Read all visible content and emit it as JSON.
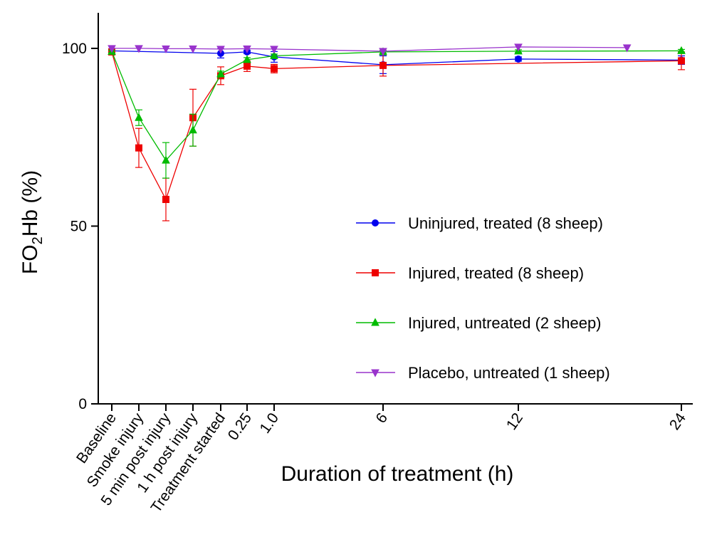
{
  "chart_data": {
    "type": "line",
    "title": "",
    "xlabel": "Duration of treatment (h)",
    "ylabel": "FO",
    "ylabel_sub": "2",
    "ylabel_rest": "Hb (%)",
    "ylim": [
      0,
      110
    ],
    "yticks": [
      "0",
      "50",
      "100"
    ],
    "ytick_values": [
      0,
      50,
      100
    ],
    "categories": [
      "Baseline",
      "Smoke injury",
      "5 min post injury",
      "1 h post injury",
      "Treatment started",
      "0.25",
      "1.0",
      "6",
      "12",
      "24"
    ],
    "x_time_positions": [
      -4,
      -3,
      -2,
      -1,
      0,
      0.25,
      1.0,
      6,
      12,
      24
    ],
    "legend_position": "right-center",
    "grid": false,
    "series": [
      {
        "name": "Uninjured, treated (8 sheep)",
        "color": "#0000ee",
        "marker": "circle",
        "points": [
          {
            "x": -4,
            "y": 99.3,
            "err": 0.6
          },
          {
            "x": 0,
            "y": 98.6,
            "err": 1.3
          },
          {
            "x": 0.25,
            "y": 99.0,
            "err": 0.5
          },
          {
            "x": 1.0,
            "y": 97.6,
            "err": 1.5
          },
          {
            "x": 6,
            "y": 95.4,
            "err": 2.5
          },
          {
            "x": 12,
            "y": 97.0,
            "err": 0.6
          },
          {
            "x": 24,
            "y": 96.7,
            "err": 1.2
          }
        ]
      },
      {
        "name": "Injured, treated (8 sheep)",
        "color": "#ee0000",
        "marker": "square",
        "points": [
          {
            "x": -4,
            "y": 99.0,
            "err": 0.5
          },
          {
            "x": -3,
            "y": 72.0,
            "err": 5.5
          },
          {
            "x": -2,
            "y": 57.5,
            "err": 6.0
          },
          {
            "x": -1,
            "y": 80.5,
            "err": 8.0
          },
          {
            "x": 0,
            "y": 92.3,
            "err": 2.5
          },
          {
            "x": 0.25,
            "y": 95.0,
            "err": 1.5
          },
          {
            "x": 1.0,
            "y": 94.3,
            "err": 1.2
          },
          {
            "x": 6,
            "y": 95.2,
            "err": 3.0
          },
          {
            "x": 24,
            "y": 96.5,
            "err": 2.5
          }
        ]
      },
      {
        "name": "Injured, untreated (2 sheep)",
        "color": "#00bb00",
        "marker": "triangle-up",
        "points": [
          {
            "x": -4,
            "y": 99.1,
            "err": 0.4
          },
          {
            "x": -3,
            "y": 80.5,
            "err": 2.2
          },
          {
            "x": -2,
            "y": 68.5,
            "err": 5.0
          },
          {
            "x": -1,
            "y": 77.0,
            "err": 4.5
          },
          {
            "x": 0,
            "y": 92.8,
            "err": 0.8
          },
          {
            "x": 0.25,
            "y": 96.8,
            "err": 0.6
          },
          {
            "x": 1.0,
            "y": 97.9,
            "err": 0.5
          },
          {
            "x": 6,
            "y": 99.0,
            "err": 0.4
          },
          {
            "x": 12,
            "y": 99.2,
            "err": 0.4
          },
          {
            "x": 24,
            "y": 99.3,
            "err": 0.4
          }
        ]
      },
      {
        "name": "Placebo, untreated (1 sheep)",
        "color": "#9933cc",
        "marker": "triangle-down",
        "points": [
          {
            "x": -4,
            "y": 100.0
          },
          {
            "x": -3,
            "y": 100.0
          },
          {
            "x": -2,
            "y": 99.9
          },
          {
            "x": -1,
            "y": 99.9
          },
          {
            "x": 0,
            "y": 99.8
          },
          {
            "x": 0.25,
            "y": 99.9
          },
          {
            "x": 1.0,
            "y": 99.8
          },
          {
            "x": 6,
            "y": 99.2
          },
          {
            "x": 12,
            "y": 100.4
          },
          {
            "x": 20,
            "y": 100.2
          }
        ]
      }
    ]
  }
}
